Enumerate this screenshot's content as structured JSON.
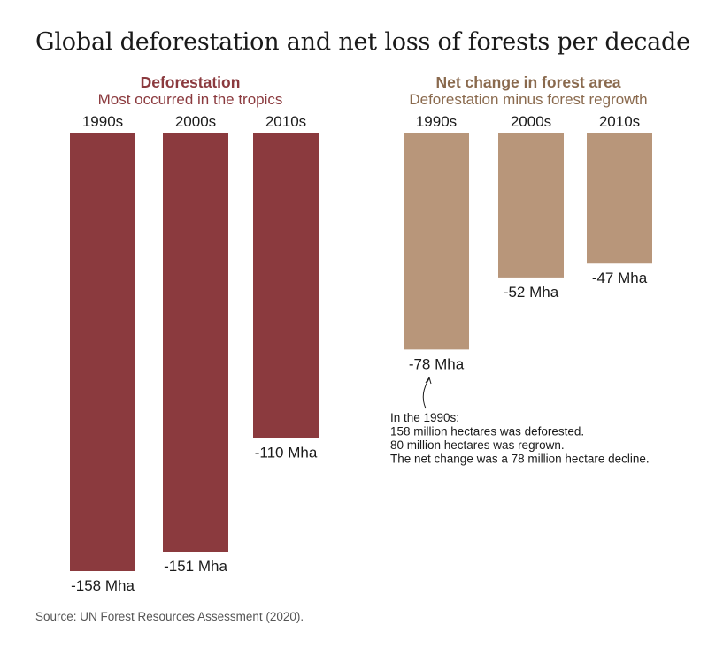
{
  "title": "Global deforestation and net loss of forests per decade",
  "source": "Source: UN Forest Resources Assessment (2020).",
  "colors": {
    "deforestation": "#8B3A3E",
    "net_change": "#B8967A",
    "deforestation_title": "#8B3A3E",
    "net_change_title": "#8A6A4E"
  },
  "panels": {
    "left": {
      "title": "Deforestation",
      "subtitle": "Most occurred in the tropics"
    },
    "right": {
      "title": "Net change in forest area",
      "subtitle": "Deforestation minus forest regrowth"
    }
  },
  "annotation": {
    "lines": [
      "In the 1990s:",
      "158 million hectares was deforested.",
      "80 million hectares was regrown.",
      "The net change was a 78 million hectare decline."
    ]
  },
  "chart_data": [
    {
      "type": "bar",
      "title": "Deforestation",
      "subtitle": "Most occurred in the tropics",
      "categories": [
        "1990s",
        "2000s",
        "2010s"
      ],
      "values": [
        -158,
        -151,
        -110
      ],
      "value_labels": [
        "-158 Mha",
        "-151 Mha",
        "-110 Mha"
      ],
      "unit": "Mha",
      "ylim": [
        -158,
        0
      ],
      "grid": false
    },
    {
      "type": "bar",
      "title": "Net change in forest area",
      "subtitle": "Deforestation minus forest regrowth",
      "categories": [
        "1990s",
        "2000s",
        "2010s"
      ],
      "values": [
        -78,
        -52,
        -47
      ],
      "value_labels": [
        "-78 Mha",
        "-52 Mha",
        "-47 Mha"
      ],
      "unit": "Mha",
      "ylim": [
        -158,
        0
      ],
      "grid": false
    }
  ]
}
